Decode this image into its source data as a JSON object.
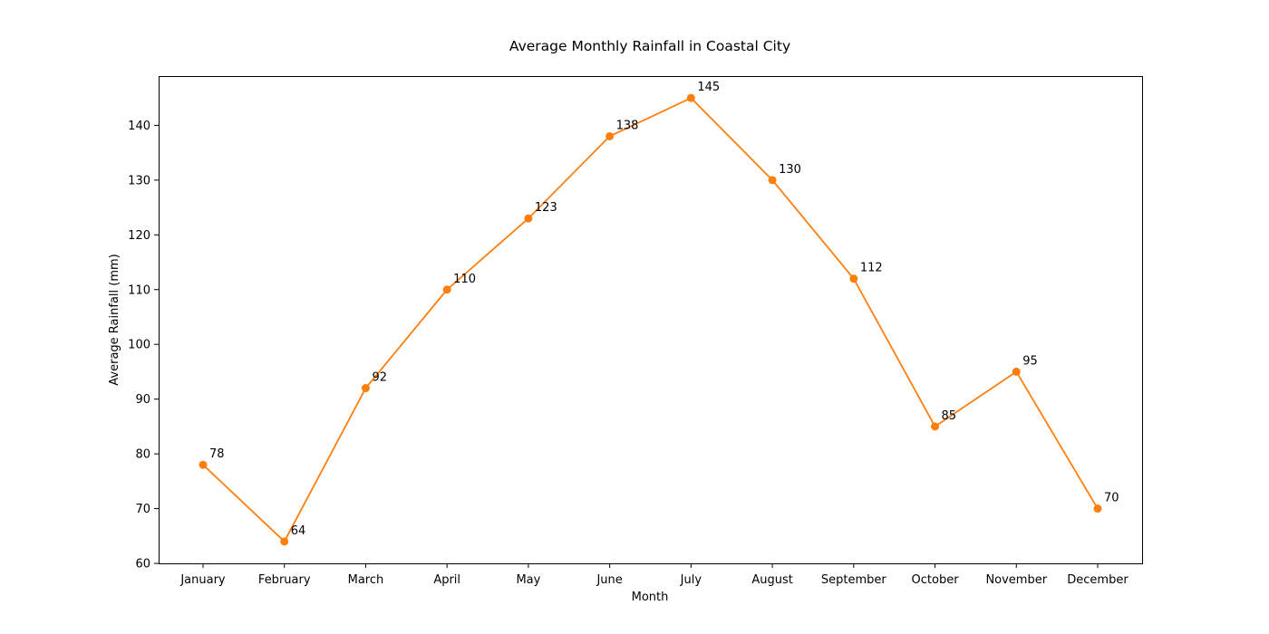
{
  "chart_data": {
    "type": "line",
    "title": "Average Monthly Rainfall in Coastal City",
    "xlabel": "Month",
    "ylabel": "Average Rainfall (mm)",
    "categories": [
      "January",
      "February",
      "March",
      "April",
      "May",
      "June",
      "July",
      "August",
      "September",
      "October",
      "November",
      "December"
    ],
    "series": [
      {
        "values": [
          78,
          64,
          92,
          110,
          123,
          138,
          145,
          130,
          112,
          85,
          95,
          70
        ],
        "color": "#ff7f0e"
      }
    ],
    "ylim": [
      60,
      149
    ],
    "yticks": [
      60,
      70,
      80,
      90,
      100,
      110,
      120,
      130,
      140
    ],
    "grid": false,
    "legend": "none",
    "data_labels": true
  }
}
